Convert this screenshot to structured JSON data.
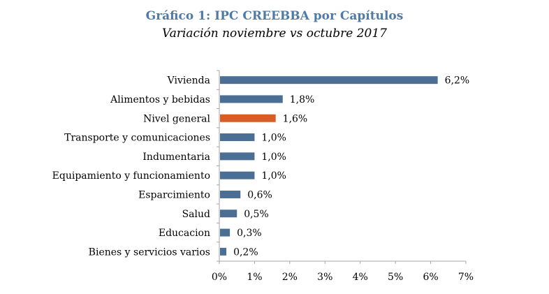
{
  "chart_data": {
    "type": "bar",
    "orientation": "horizontal",
    "title": "Gráfico 1: IPC CREEBBA por Capítulos",
    "subtitle": "Variación noviembre vs octubre 2017",
    "xlabel": "",
    "ylabel": "",
    "xlim": [
      0,
      7
    ],
    "grid": false,
    "categories": [
      "Vivienda",
      "Alimentos y bebidas",
      "Nivel general",
      "Transporte y comunicaciones",
      "Indumentaria",
      "Equipamiento y funcionamiento",
      "Esparcimiento",
      "Salud",
      "Educacion",
      "Bienes y servicios varios"
    ],
    "values": [
      6.2,
      1.8,
      1.6,
      1.0,
      1.0,
      1.0,
      0.6,
      0.5,
      0.3,
      0.2
    ],
    "labels": [
      "6,2%",
      "1,8%",
      "1,6%",
      "1,0%",
      "1,0%",
      "1,0%",
      "0,6%",
      "0,5%",
      "0,3%",
      "0,2%"
    ],
    "highlight_index": 2,
    "colors": {
      "default": "#4a6e94",
      "highlight": "#d95c27"
    },
    "x_ticks": [
      0,
      1,
      2,
      3,
      4,
      5,
      6,
      7
    ],
    "x_tick_labels": [
      "0%",
      "1%",
      "2%",
      "3%",
      "4%",
      "5%",
      "6%",
      "7%"
    ]
  }
}
